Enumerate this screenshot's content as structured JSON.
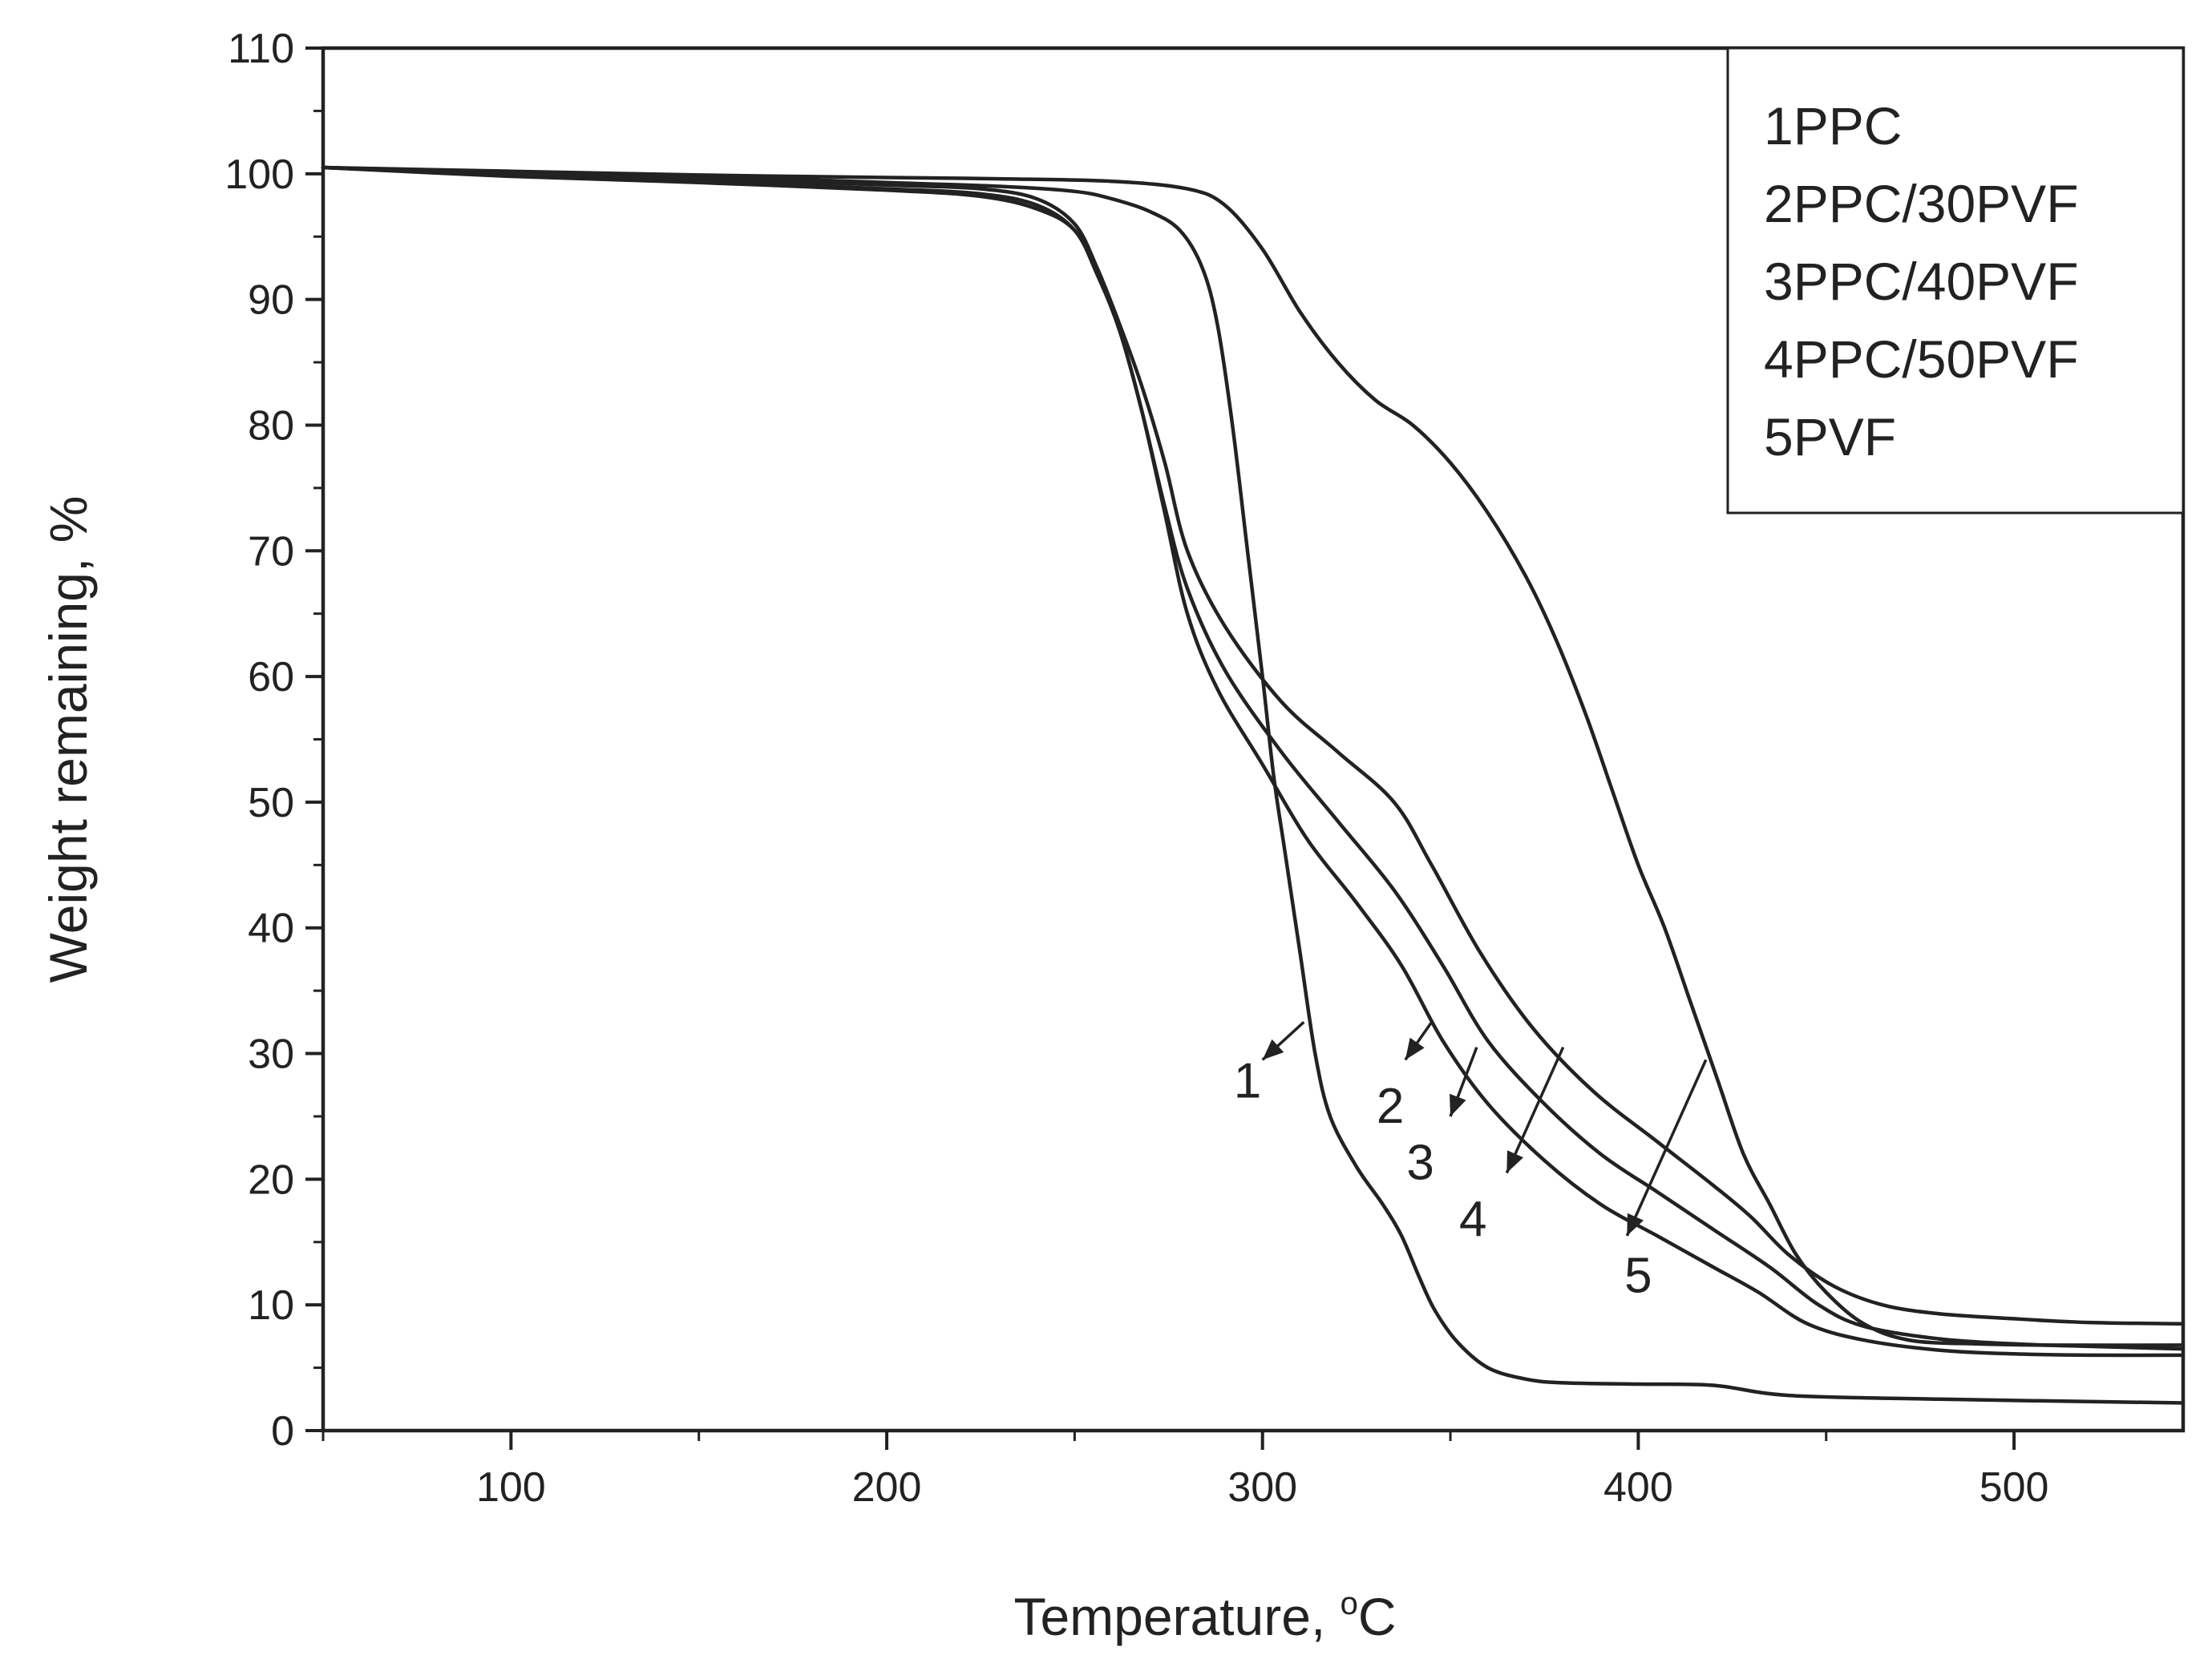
{
  "chart_data": {
    "type": "line",
    "title": "",
    "xlabel": "Temperature, ",
    "xlabel_unit": "C",
    "xlabel_degree": "o",
    "ylabel": "Weight remaining, %",
    "xlim": [
      50,
      545
    ],
    "ylim": [
      0,
      110
    ],
    "xticks": [
      100,
      200,
      300,
      400,
      500
    ],
    "yticks": [
      0,
      10,
      20,
      30,
      40,
      50,
      60,
      70,
      80,
      90,
      100,
      110
    ],
    "legend": {
      "position": "top-right",
      "entries": [
        "1PPC",
        "2PPC/30PVF",
        "3PPC/40PVF",
        "4PPC/50PVF",
        "5PVF"
      ]
    },
    "series": [
      {
        "name": "1PPC",
        "annotation": "1",
        "points": [
          [
            50,
            100.5
          ],
          [
            100,
            100.1
          ],
          [
            150,
            99.8
          ],
          [
            200,
            99.3
          ],
          [
            230,
            99.0
          ],
          [
            250,
            98.6
          ],
          [
            260,
            98.0
          ],
          [
            270,
            97.0
          ],
          [
            278,
            95.5
          ],
          [
            284,
            92.5
          ],
          [
            288,
            88
          ],
          [
            292,
            80
          ],
          [
            296,
            70
          ],
          [
            300,
            60
          ],
          [
            303,
            52
          ],
          [
            306,
            46
          ],
          [
            310,
            38
          ],
          [
            314,
            30
          ],
          [
            318,
            25
          ],
          [
            325,
            21
          ],
          [
            332,
            18
          ],
          [
            337,
            15.5
          ],
          [
            342,
            12
          ],
          [
            346,
            9.5
          ],
          [
            352,
            7
          ],
          [
            360,
            5
          ],
          [
            370,
            4.1
          ],
          [
            380,
            3.8
          ],
          [
            400,
            3.7
          ],
          [
            420,
            3.6
          ],
          [
            440,
            2.8
          ],
          [
            480,
            2.5
          ],
          [
            545,
            2.2
          ]
        ]
      },
      {
        "name": "2PPC/30PVF",
        "annotation": "2",
        "points": [
          [
            50,
            100.5
          ],
          [
            100,
            99.8
          ],
          [
            150,
            99.3
          ],
          [
            200,
            98.7
          ],
          [
            225,
            98.2
          ],
          [
            240,
            97.2
          ],
          [
            250,
            95.5
          ],
          [
            256,
            92
          ],
          [
            262,
            87.5
          ],
          [
            268,
            81
          ],
          [
            274,
            73
          ],
          [
            280,
            65
          ],
          [
            288,
            59
          ],
          [
            300,
            53
          ],
          [
            312,
            47
          ],
          [
            325,
            42
          ],
          [
            337,
            37
          ],
          [
            348,
            31
          ],
          [
            360,
            26
          ],
          [
            375,
            21.5
          ],
          [
            390,
            18
          ],
          [
            405,
            15.5
          ],
          [
            420,
            13
          ],
          [
            432,
            11
          ],
          [
            445,
            8.5
          ],
          [
            460,
            7.2
          ],
          [
            480,
            6.4
          ],
          [
            500,
            6.1
          ],
          [
            520,
            6.0
          ],
          [
            545,
            6.0
          ]
        ]
      },
      {
        "name": "3PPC/40PVF",
        "annotation": "3",
        "points": [
          [
            50,
            100.5
          ],
          [
            100,
            99.9
          ],
          [
            150,
            99.4
          ],
          [
            200,
            98.8
          ],
          [
            225,
            98.4
          ],
          [
            240,
            97.5
          ],
          [
            250,
            95.5
          ],
          [
            256,
            92
          ],
          [
            262,
            87.5
          ],
          [
            268,
            81
          ],
          [
            274,
            73.5
          ],
          [
            280,
            67
          ],
          [
            290,
            60.5
          ],
          [
            305,
            54
          ],
          [
            320,
            48.5
          ],
          [
            335,
            43
          ],
          [
            348,
            37
          ],
          [
            360,
            31
          ],
          [
            375,
            26
          ],
          [
            390,
            22
          ],
          [
            405,
            19
          ],
          [
            420,
            16
          ],
          [
            435,
            13
          ],
          [
            448,
            10
          ],
          [
            460,
            8.3
          ],
          [
            480,
            7.3
          ],
          [
            500,
            6.9
          ],
          [
            520,
            6.7
          ],
          [
            545,
            6.5
          ]
        ]
      },
      {
        "name": "4PPC/50PVF",
        "annotation": "4",
        "points": [
          [
            50,
            100.5
          ],
          [
            100,
            100.0
          ],
          [
            150,
            99.6
          ],
          [
            200,
            99.1
          ],
          [
            225,
            98.8
          ],
          [
            240,
            98.0
          ],
          [
            250,
            96
          ],
          [
            256,
            92.5
          ],
          [
            262,
            88
          ],
          [
            268,
            83
          ],
          [
            274,
            77
          ],
          [
            280,
            70
          ],
          [
            290,
            64
          ],
          [
            305,
            58
          ],
          [
            320,
            54
          ],
          [
            335,
            50
          ],
          [
            345,
            45
          ],
          [
            358,
            38
          ],
          [
            372,
            32
          ],
          [
            388,
            27
          ],
          [
            405,
            23
          ],
          [
            420,
            19.5
          ],
          [
            430,
            17
          ],
          [
            440,
            14
          ],
          [
            452,
            11.5
          ],
          [
            465,
            10
          ],
          [
            480,
            9.3
          ],
          [
            500,
            8.9
          ],
          [
            520,
            8.6
          ],
          [
            545,
            8.5
          ]
        ]
      },
      {
        "name": "5PVF",
        "annotation": "5",
        "points": [
          [
            50,
            100.5
          ],
          [
            100,
            100.2
          ],
          [
            150,
            99.9
          ],
          [
            200,
            99.7
          ],
          [
            230,
            99.6
          ],
          [
            260,
            99.4
          ],
          [
            280,
            98.8
          ],
          [
            290,
            97.5
          ],
          [
            300,
            94
          ],
          [
            310,
            89
          ],
          [
            320,
            85
          ],
          [
            330,
            82
          ],
          [
            340,
            80
          ],
          [
            350,
            77
          ],
          [
            360,
            73
          ],
          [
            370,
            68
          ],
          [
            378,
            63
          ],
          [
            386,
            57
          ],
          [
            393,
            51
          ],
          [
            400,
            45
          ],
          [
            407,
            40
          ],
          [
            414,
            34
          ],
          [
            421,
            28
          ],
          [
            428,
            22
          ],
          [
            435,
            18
          ],
          [
            442,
            14
          ],
          [
            450,
            11
          ],
          [
            460,
            8.5
          ],
          [
            472,
            7.2
          ],
          [
            490,
            6.9
          ],
          [
            510,
            6.8
          ],
          [
            545,
            6.8
          ]
        ]
      }
    ],
    "annotations": [
      {
        "text": "1",
        "label_at": [
          296,
          26.5
        ],
        "arrow_from": [
          311,
          32.5
        ],
        "arrow_to": [
          300,
          29.5
        ]
      },
      {
        "text": "2",
        "label_at": [
          334,
          24.5
        ],
        "arrow_from": [
          345,
          32.5
        ],
        "arrow_to": [
          338,
          29.5
        ]
      },
      {
        "text": "3",
        "label_at": [
          342,
          20
        ],
        "arrow_from": [
          357,
          30.5
        ],
        "arrow_to": [
          350,
          25
        ]
      },
      {
        "text": "4",
        "label_at": [
          356,
          15.5
        ],
        "arrow_from": [
          380,
          30.5
        ],
        "arrow_to": [
          365,
          20.5
        ]
      },
      {
        "text": "5",
        "label_at": [
          400,
          11
        ],
        "arrow_from": [
          418,
          29.5
        ],
        "arrow_to": [
          397,
          15.5
        ]
      }
    ]
  }
}
